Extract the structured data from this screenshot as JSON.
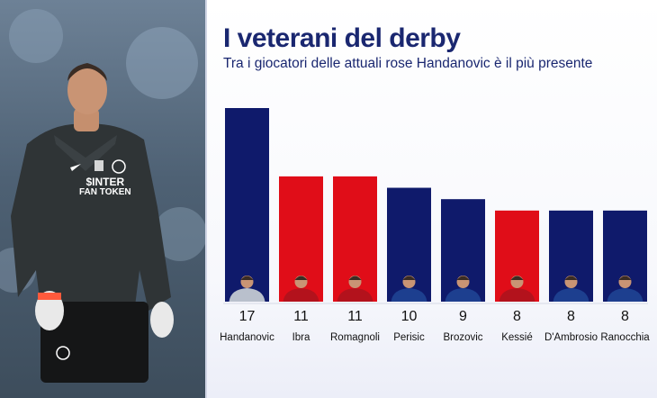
{
  "header": {
    "title": "I veterani del derby",
    "subtitle": "Tra i giocatori delle attuali rose Handanovic è il più presente"
  },
  "photo": {
    "subject": "goalkeeper-inter",
    "sponsor": "$INTER",
    "sponsor_sub": "FAN TOKEN"
  },
  "colors": {
    "inter": "#0f1a6b",
    "milan": "#e00d18",
    "title": "#1a2770"
  },
  "chart_data": {
    "type": "bar",
    "title": "I veterani del derby",
    "subtitle": "Tra i giocatori delle attuali rose Handanovic è il più presente",
    "categories": [
      "Handanovic",
      "Ibra",
      "Romagnoli",
      "Perisic",
      "Brozovic",
      "Kessié",
      "D'Ambrosio",
      "Ranocchia"
    ],
    "values": [
      17,
      11,
      11,
      10,
      9,
      8,
      8,
      8
    ],
    "value_labels": [
      "17",
      "11",
      "11",
      "10",
      "9",
      "8",
      "8",
      "8"
    ],
    "teams": [
      "inter",
      "milan",
      "milan",
      "inter",
      "inter",
      "milan",
      "inter",
      "inter"
    ],
    "ylim": [
      0,
      17
    ],
    "grid": false,
    "legend": "none",
    "xlabel": "",
    "ylabel": ""
  }
}
